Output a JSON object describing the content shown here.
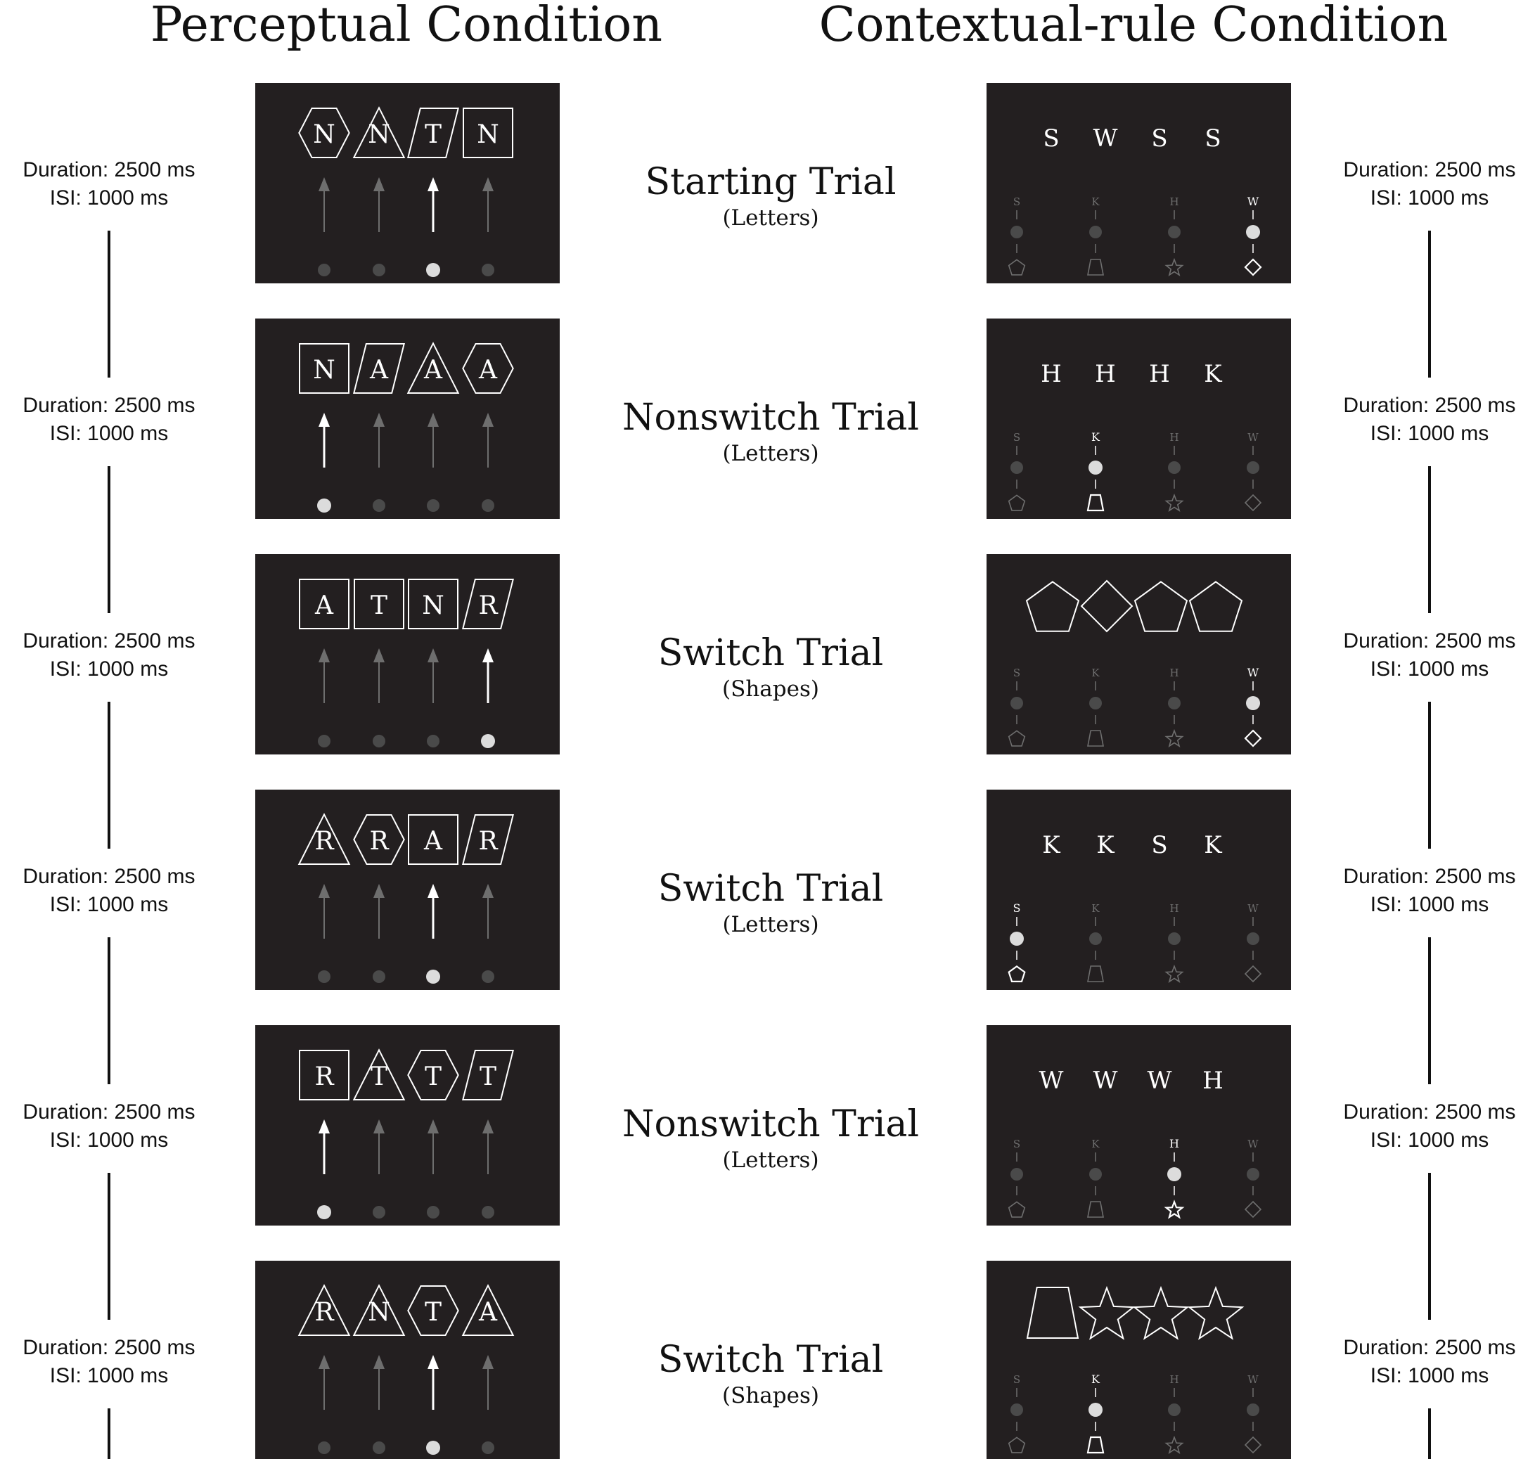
{
  "headers": {
    "perceptual": "Perceptual Condition",
    "contextual": "Contextual-rule Condition"
  },
  "timing": {
    "duration": "Duration: 2500 ms",
    "isi": "ISI: 1000 ms"
  },
  "response_key_labels": [
    "S",
    "K",
    "H",
    "W"
  ],
  "response_key_shapes": [
    "pentagon",
    "trapezoid",
    "star",
    "diamond"
  ],
  "colors": {
    "panel_background": "#231f20",
    "highlight": "#ffffff",
    "dim": "#6e6e6e",
    "dim_circle": "#4a4a4a",
    "active_circle": "#dcdcdc"
  },
  "trials": [
    {
      "title": "Starting Trial",
      "subtitle": "(Letters)",
      "perceptual": {
        "stimuli": [
          {
            "shape": "hexagon",
            "letter": "N"
          },
          {
            "shape": "triangle",
            "letter": "N"
          },
          {
            "shape": "parallelogram",
            "letter": "T"
          },
          {
            "shape": "square",
            "letter": "N"
          }
        ],
        "active_response": 2
      },
      "contextual": {
        "display": "letters",
        "items": [
          "S",
          "W",
          "S",
          "S"
        ],
        "active_response": 3
      }
    },
    {
      "title": "Nonswitch Trial",
      "subtitle": "(Letters)",
      "perceptual": {
        "stimuli": [
          {
            "shape": "square",
            "letter": "N"
          },
          {
            "shape": "parallelogram",
            "letter": "A"
          },
          {
            "shape": "triangle",
            "letter": "A"
          },
          {
            "shape": "hexagon",
            "letter": "A"
          }
        ],
        "active_response": 0
      },
      "contextual": {
        "display": "letters",
        "items": [
          "H",
          "H",
          "H",
          "K"
        ],
        "active_response": 1
      }
    },
    {
      "title": "Switch Trial",
      "subtitle": "(Shapes)",
      "perceptual": {
        "stimuli": [
          {
            "shape": "square",
            "letter": "A"
          },
          {
            "shape": "square",
            "letter": "T"
          },
          {
            "shape": "square",
            "letter": "N"
          },
          {
            "shape": "parallelogram",
            "letter": "R"
          }
        ],
        "active_response": 3
      },
      "contextual": {
        "display": "shapes",
        "items": [
          "pentagon",
          "diamond",
          "pentagon",
          "pentagon"
        ],
        "active_response": 3
      }
    },
    {
      "title": "Switch Trial",
      "subtitle": "(Letters)",
      "perceptual": {
        "stimuli": [
          {
            "shape": "triangle",
            "letter": "R"
          },
          {
            "shape": "hexagon",
            "letter": "R"
          },
          {
            "shape": "square",
            "letter": "A"
          },
          {
            "shape": "parallelogram",
            "letter": "R"
          }
        ],
        "active_response": 2
      },
      "contextual": {
        "display": "letters",
        "items": [
          "K",
          "K",
          "S",
          "K"
        ],
        "active_response": 0
      }
    },
    {
      "title": "Nonswitch Trial",
      "subtitle": "(Letters)",
      "perceptual": {
        "stimuli": [
          {
            "shape": "square",
            "letter": "R"
          },
          {
            "shape": "triangle",
            "letter": "T"
          },
          {
            "shape": "hexagon",
            "letter": "T"
          },
          {
            "shape": "parallelogram",
            "letter": "T"
          }
        ],
        "active_response": 0
      },
      "contextual": {
        "display": "letters",
        "items": [
          "W",
          "W",
          "W",
          "H"
        ],
        "active_response": 2
      }
    },
    {
      "title": "Switch Trial",
      "subtitle": "(Shapes)",
      "perceptual": {
        "stimuli": [
          {
            "shape": "triangle",
            "letter": "R"
          },
          {
            "shape": "triangle",
            "letter": "N"
          },
          {
            "shape": "hexagon",
            "letter": "T"
          },
          {
            "shape": "triangle",
            "letter": "A"
          }
        ],
        "active_response": 2
      },
      "contextual": {
        "display": "shapes",
        "items": [
          "trapezoid",
          "star",
          "star",
          "star"
        ],
        "active_response": 1
      }
    }
  ]
}
